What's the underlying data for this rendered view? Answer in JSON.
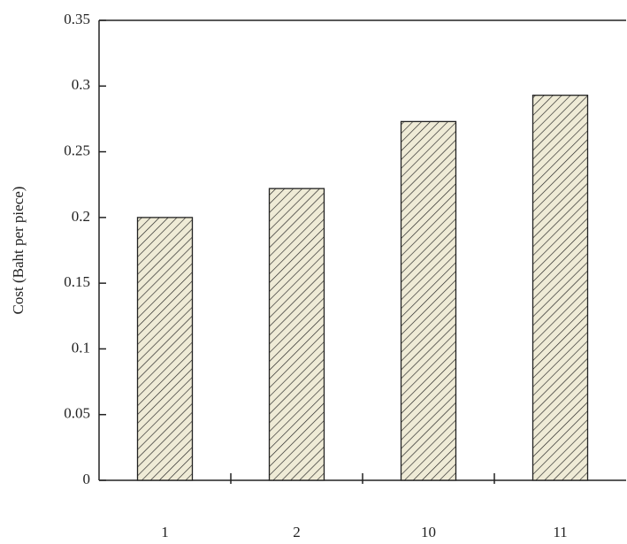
{
  "chart_data": {
    "type": "bar",
    "y_label": "Cost (Baht per piece)",
    "categories": [
      "1",
      "2",
      "10",
      "11"
    ],
    "values": [
      0.2,
      0.222,
      0.273,
      0.293
    ],
    "color": "#efebd6",
    "hatch": true,
    "ylim": [
      0,
      0.35
    ],
    "yticks": [
      0,
      0.05,
      0.1,
      0.15,
      0.2,
      0.25,
      0.3,
      0.35
    ],
    "grid": false
  }
}
